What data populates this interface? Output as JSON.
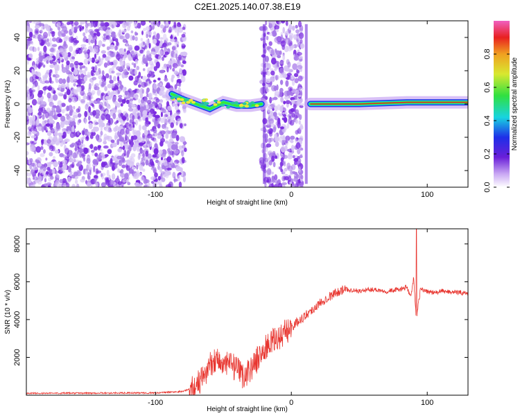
{
  "title": "C2E1.2025.140.07.38.E19",
  "chart_data": [
    {
      "type": "heatmap",
      "panel": "spectrogram",
      "xlabel": "Height of straight line (km)",
      "ylabel": "Frequency (Hz)",
      "xlim": [
        -195,
        130
      ],
      "ylim": [
        -50,
        50
      ],
      "xticks": [
        -100,
        0,
        100
      ],
      "yticks": [
        -40,
        -20,
        0,
        20,
        40
      ],
      "colorbar": {
        "label": "Normalized spectral amplitude",
        "range": [
          0,
          1
        ],
        "ticks": [
          0.0,
          0.2,
          0.4,
          0.6,
          0.8
        ]
      },
      "features": {
        "noise_regions_km": [
          [
            -195,
            -78
          ],
          [
            -22,
            8
          ]
        ],
        "signal_track": [
          {
            "x": -88,
            "y": 6
          },
          {
            "x": -80,
            "y": 3
          },
          {
            "x": -70,
            "y": 0
          },
          {
            "x": -60,
            "y": -3
          },
          {
            "x": -50,
            "y": 1
          },
          {
            "x": -40,
            "y": -1
          },
          {
            "x": -30,
            "y": -1
          },
          {
            "x": -22,
            "y": 0
          },
          {
            "x": 14,
            "y": 0
          },
          {
            "x": 50,
            "y": 0
          },
          {
            "x": 85,
            "y": 1
          },
          {
            "x": 105,
            "y": 1
          },
          {
            "x": 130,
            "y": 1
          }
        ]
      },
      "grid": false
    },
    {
      "type": "line",
      "panel": "snr",
      "xlabel": "Height of straight line (km)",
      "ylabel": "SNR (10 * v/v)",
      "xlim": [
        -195,
        130
      ],
      "ylim": [
        0,
        8800
      ],
      "xticks": [
        -100,
        0,
        100
      ],
      "yticks": [
        2000,
        4000,
        6000,
        8000
      ],
      "color": "#e8352f",
      "series": [
        {
          "x": [
            -195,
            -150,
            -100,
            -80,
            -72,
            -65,
            -60,
            -55,
            -50,
            -45,
            -40,
            -35,
            -30,
            -25,
            -20,
            -15,
            -10,
            -5,
            0,
            5,
            10,
            15,
            20,
            25,
            30,
            35,
            40,
            50,
            60,
            70,
            80,
            85,
            88,
            90,
            92,
            95,
            100,
            105,
            110,
            120,
            130
          ],
          "y": [
            100,
            110,
            120,
            200,
            400,
            900,
            1600,
            2000,
            1500,
            1700,
            1300,
            1000,
            1400,
            1900,
            2400,
            2800,
            3000,
            3300,
            3600,
            3900,
            4200,
            4500,
            4800,
            5100,
            5300,
            5500,
            5600,
            5500,
            5600,
            5500,
            5600,
            5700,
            5200,
            6200,
            4000,
            5600,
            5500,
            5400,
            5500,
            5450,
            5400
          ]
        }
      ],
      "annotations": [
        {
          "x": 92,
          "y": 8800,
          "note": "spike"
        }
      ],
      "grid": false
    }
  ]
}
